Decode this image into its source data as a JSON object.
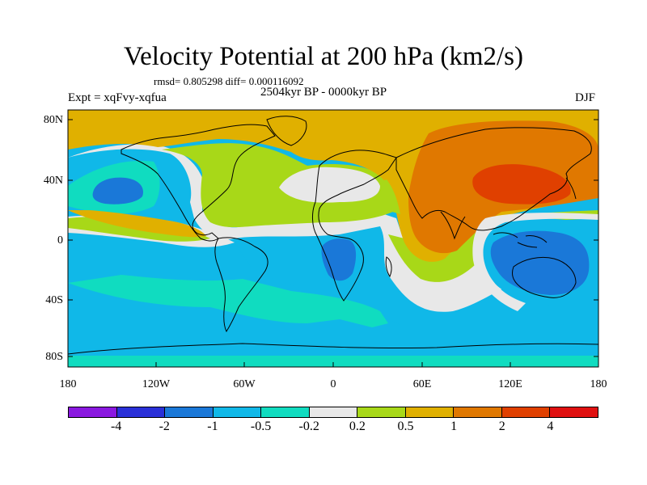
{
  "header": {
    "title": "Velocity Potential at 200 hPa (km2/s)",
    "stats": "rmsd= 0.805298 diff= 0.000116092",
    "period": "2504kyr BP - 0000kyr BP",
    "experiment": "Expt = xqFvy-xqfua",
    "season": "DJF"
  },
  "axes": {
    "lat_labels": [
      "80N",
      "40N",
      "0",
      "40S",
      "80S"
    ],
    "lon_labels": [
      "180",
      "120W",
      "60W",
      "0",
      "60E",
      "120E",
      "180"
    ]
  },
  "colorbar": {
    "colors": [
      "#8a18e0",
      "#2a30d8",
      "#1a78d8",
      "#10b8e8",
      "#10dcc0",
      "#e8e8e8",
      "#a8d818",
      "#e0b000",
      "#e07800",
      "#e04000",
      "#e01010"
    ],
    "labels": [
      "-4",
      "-2",
      "-1",
      "-0.5",
      "-0.2",
      "0.2",
      "0.5",
      "1",
      "2",
      "4"
    ]
  },
  "map": {
    "levels": {
      "ocean_neg": "#10b8e8",
      "ocean_weak": "#10dcc0",
      "neutral": "#e8e8e8",
      "weak_pos": "#a8d818",
      "pos": "#e0b000",
      "strong_pos": "#e07800",
      "max_pos": "#e04000",
      "min_neg": "#1a78d8"
    }
  }
}
